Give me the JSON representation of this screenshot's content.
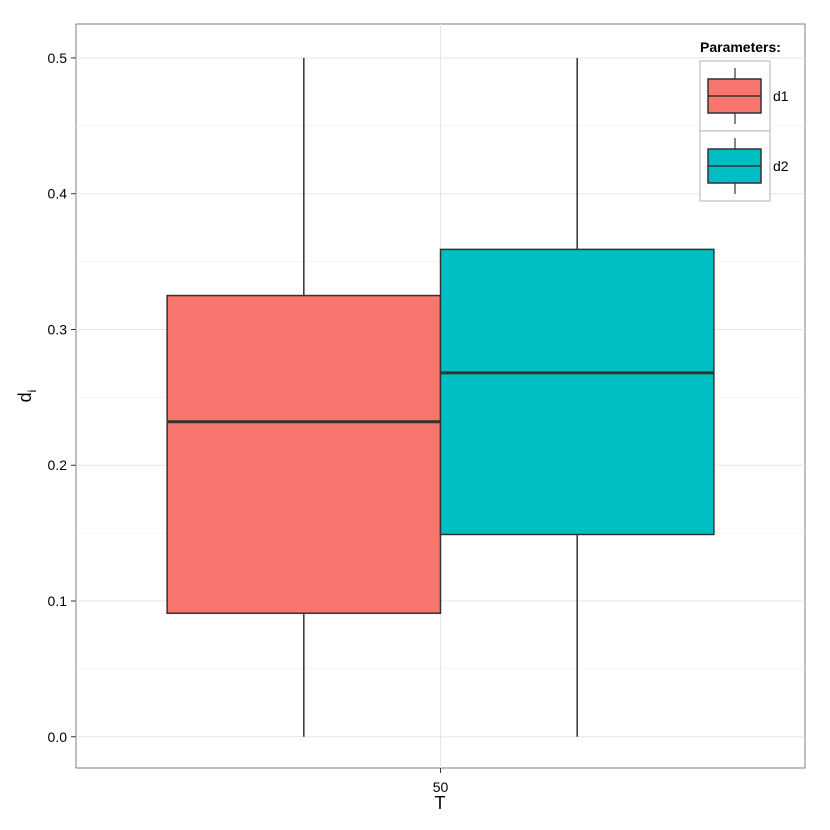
{
  "chart_data": {
    "type": "boxplot",
    "title": "",
    "xlabel": "T",
    "ylabel": "d",
    "ylabel_subscript": "i",
    "categories": [
      "50"
    ],
    "ylim": [
      -0.023,
      0.525
    ],
    "y_ticks": [
      "0.0",
      "0.1",
      "0.2",
      "0.3",
      "0.4",
      "0.5"
    ],
    "grid": true,
    "legend": {
      "title": "Parameters:",
      "position": "top-right"
    },
    "series": [
      {
        "name": "d1",
        "color": "#F8766D",
        "boxes": [
          {
            "category": "50",
            "min": 0.0,
            "q1": 0.091,
            "median": 0.232,
            "q3": 0.325,
            "max": 0.5
          }
        ]
      },
      {
        "name": "d2",
        "color": "#00BFC4",
        "boxes": [
          {
            "category": "50",
            "min": 0.0,
            "q1": 0.149,
            "median": 0.268,
            "q3": 0.359,
            "max": 0.5
          }
        ]
      }
    ]
  }
}
